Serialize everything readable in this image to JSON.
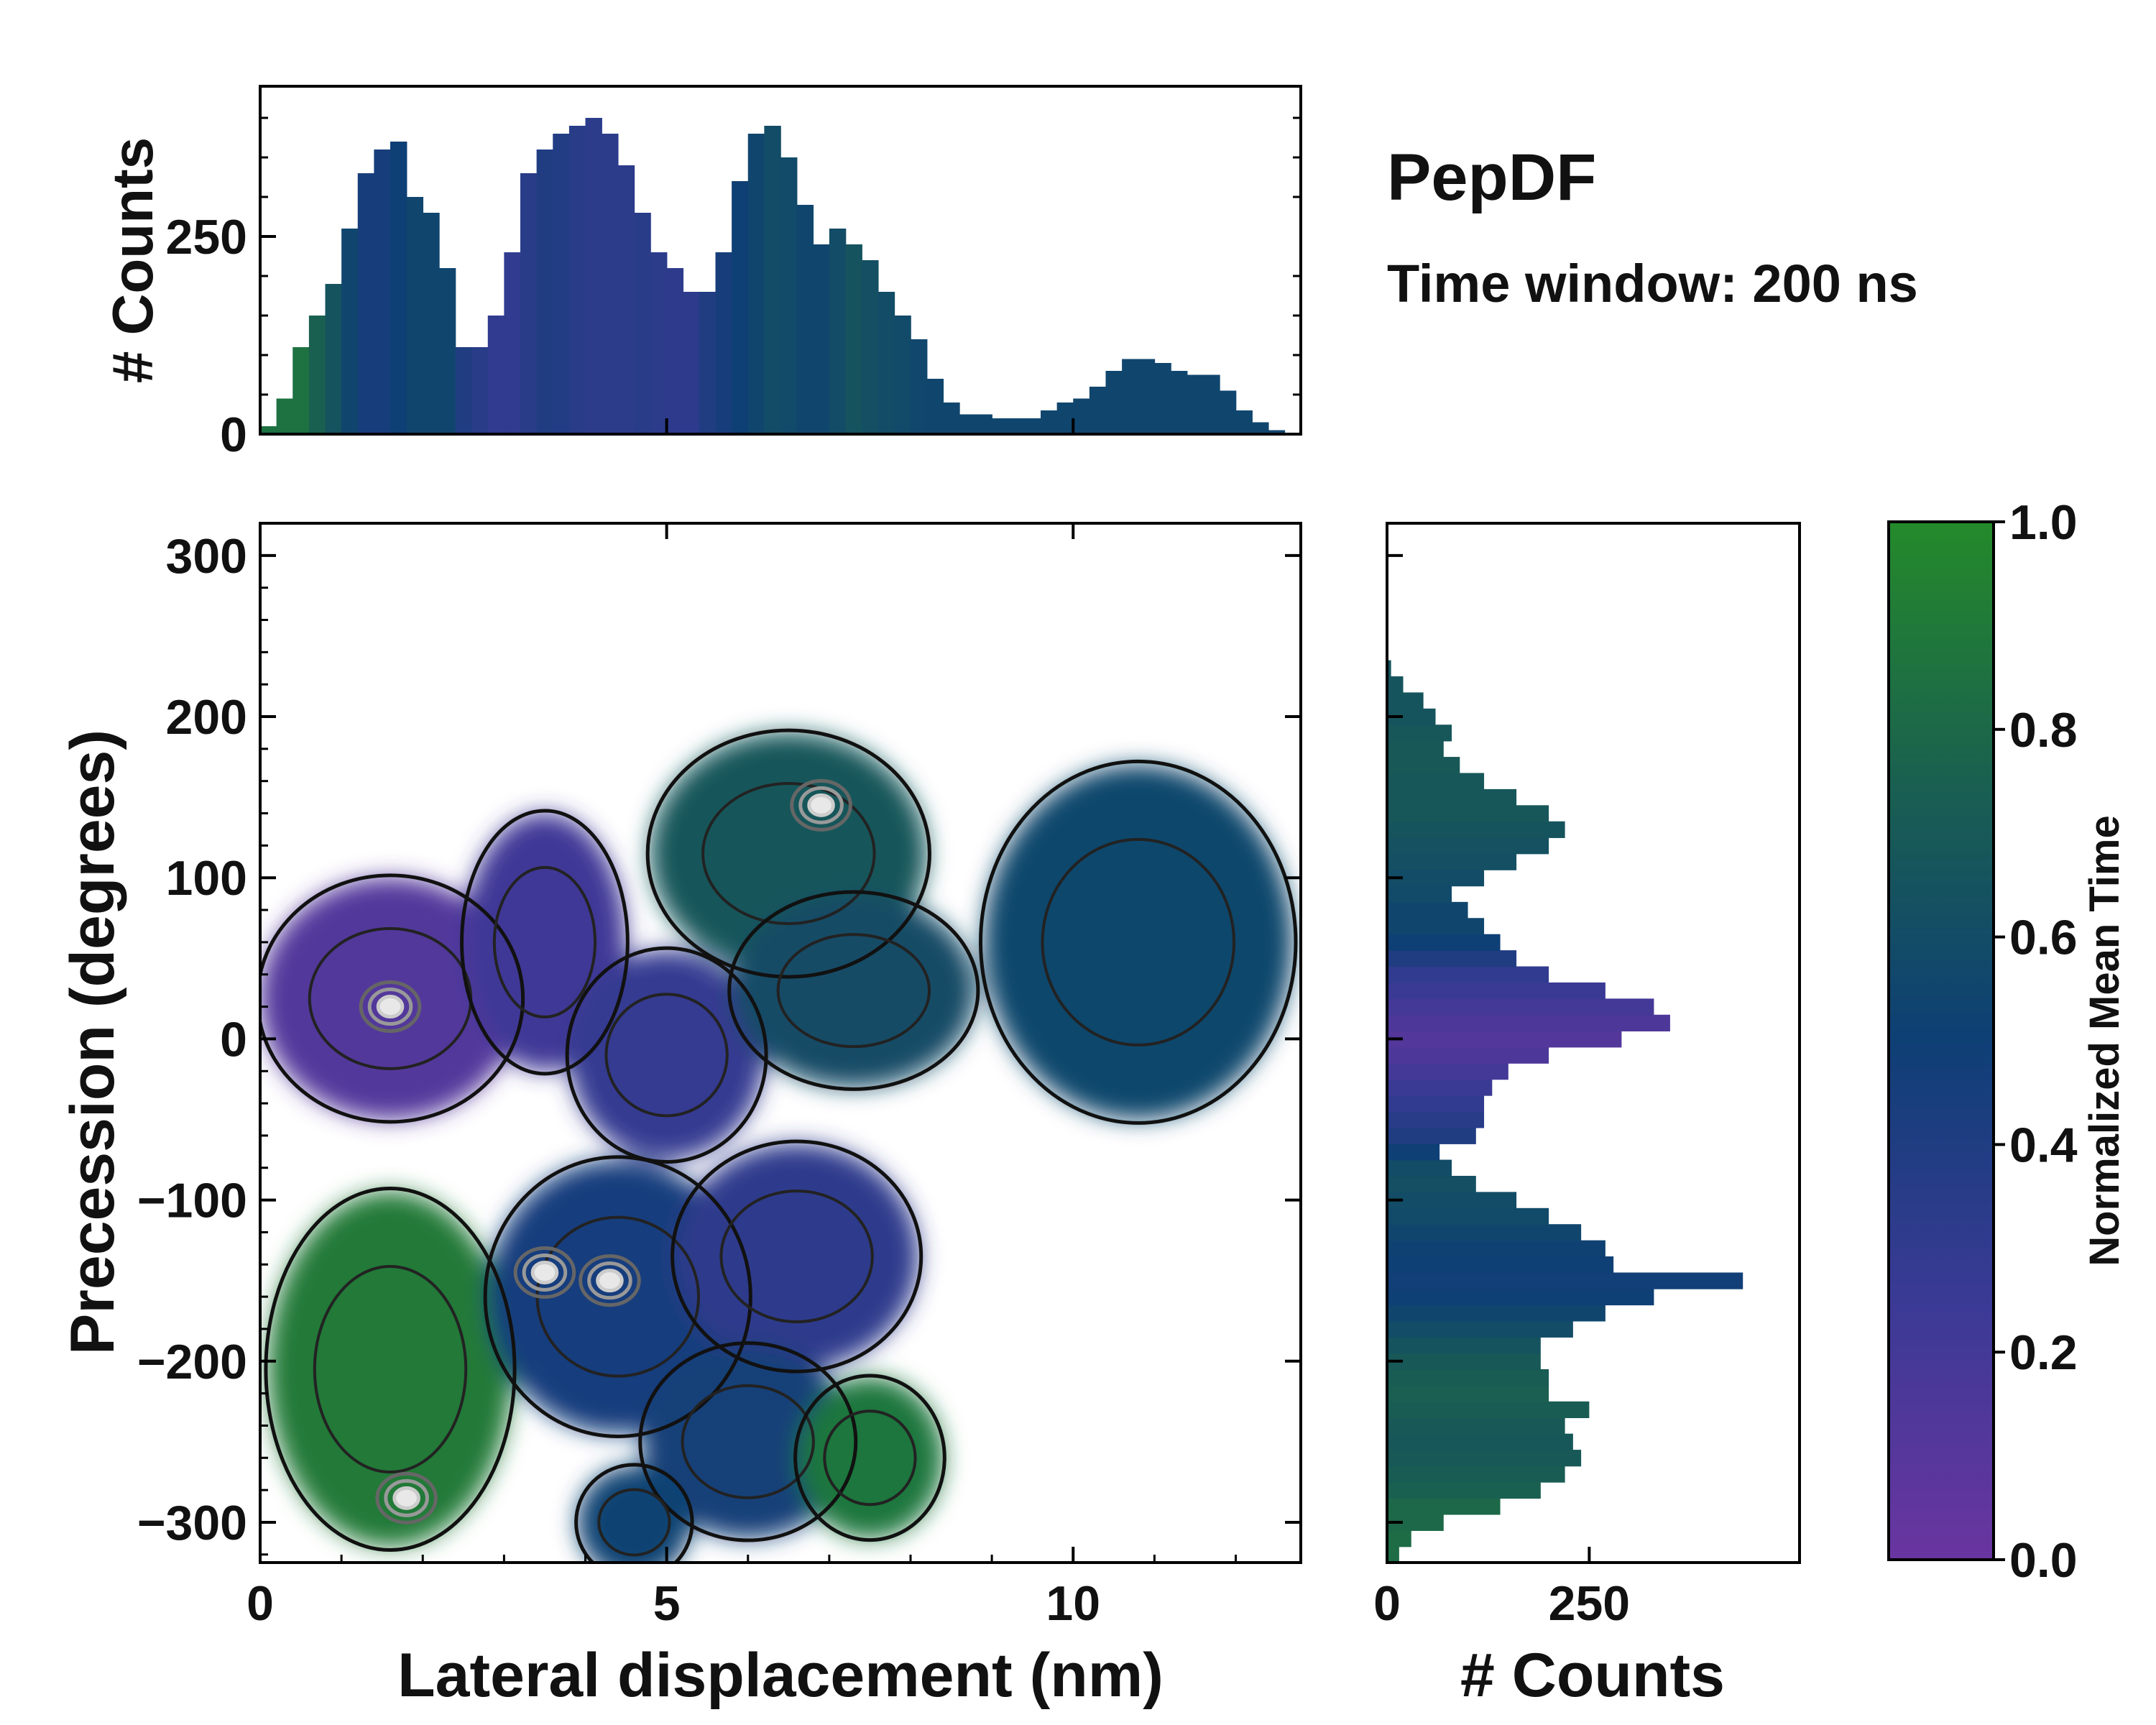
{
  "title": "PepDF",
  "subtitle": "Time window: 200 ns",
  "chart_data": [
    {
      "type": "heatmap",
      "name": "main-2d-histogram",
      "xlabel": "Lateral displacement (nm)",
      "ylabel": "Precession (degrees)",
      "xlim": [
        0,
        12.8
      ],
      "ylim": [
        -325,
        320
      ],
      "xticks": [
        0,
        5,
        10
      ],
      "yticks": [
        -300,
        -200,
        -100,
        0,
        100,
        200,
        300
      ],
      "colorbar": {
        "label": "Normalized Mean Time",
        "range": [
          0.0,
          1.0
        ],
        "ticks": [
          0.0,
          0.2,
          0.4,
          0.6,
          0.8,
          1.0
        ],
        "colors": [
          "#6a35a0",
          "#3a3a95",
          "#0e3f75",
          "#1a6050",
          "#248a2a"
        ]
      },
      "blobs": [
        {
          "cx": 1.6,
          "cy": 25,
          "rx": 1.6,
          "ry": 75,
          "t": 0.12
        },
        {
          "cx": 3.5,
          "cy": 60,
          "rx": 1.0,
          "ry": 80,
          "t": 0.22
        },
        {
          "cx": 5.0,
          "cy": -10,
          "rx": 1.2,
          "ry": 65,
          "t": 0.28
        },
        {
          "cx": 6.5,
          "cy": 115,
          "rx": 1.7,
          "ry": 75,
          "t": 0.68
        },
        {
          "cx": 7.3,
          "cy": 30,
          "rx": 1.5,
          "ry": 60,
          "t": 0.6
        },
        {
          "cx": 10.8,
          "cy": 60,
          "rx": 1.9,
          "ry": 110,
          "t": 0.56
        },
        {
          "cx": 1.6,
          "cy": -205,
          "rx": 1.5,
          "ry": 110,
          "t": 0.9
        },
        {
          "cx": 4.4,
          "cy": -160,
          "rx": 1.6,
          "ry": 85,
          "t": 0.44
        },
        {
          "cx": 6.6,
          "cy": -135,
          "rx": 1.5,
          "ry": 70,
          "t": 0.32
        },
        {
          "cx": 6.0,
          "cy": -250,
          "rx": 1.3,
          "ry": 60,
          "t": 0.48
        },
        {
          "cx": 7.5,
          "cy": -260,
          "rx": 0.9,
          "ry": 50,
          "t": 0.88
        },
        {
          "cx": 4.6,
          "cy": -300,
          "rx": 0.7,
          "ry": 35,
          "t": 0.52
        }
      ],
      "hotspots": [
        {
          "x": 1.6,
          "y": 20
        },
        {
          "x": 3.5,
          "y": -145
        },
        {
          "x": 4.3,
          "y": -150
        },
        {
          "x": 6.9,
          "y": 145
        },
        {
          "x": 1.8,
          "y": -285
        }
      ]
    },
    {
      "type": "bar",
      "name": "top-marginal-histogram",
      "xlabel": "",
      "ylabel": "# Counts",
      "xlim": [
        0,
        12.8
      ],
      "ylim": [
        0,
        440
      ],
      "yticks": [
        0,
        250
      ],
      "bin_centers": [
        0.1,
        0.3,
        0.5,
        0.7,
        0.9,
        1.1,
        1.3,
        1.5,
        1.7,
        1.9,
        2.1,
        2.3,
        2.5,
        2.7,
        2.9,
        3.1,
        3.3,
        3.5,
        3.7,
        3.9,
        4.1,
        4.3,
        4.5,
        4.7,
        4.9,
        5.1,
        5.3,
        5.5,
        5.7,
        5.9,
        6.1,
        6.3,
        6.5,
        6.7,
        6.9,
        7.1,
        7.3,
        7.5,
        7.7,
        7.9,
        8.1,
        8.3,
        8.5,
        8.7,
        8.9,
        9.1,
        9.3,
        9.5,
        9.7,
        9.9,
        10.1,
        10.3,
        10.5,
        10.7,
        10.9,
        11.1,
        11.3,
        11.5,
        11.7,
        11.9,
        12.1,
        12.3,
        12.5,
        12.7
      ],
      "values": [
        10,
        45,
        110,
        150,
        190,
        260,
        330,
        360,
        370,
        300,
        280,
        210,
        110,
        110,
        150,
        230,
        330,
        360,
        380,
        390,
        400,
        380,
        340,
        280,
        230,
        210,
        180,
        180,
        230,
        320,
        380,
        390,
        350,
        290,
        240,
        260,
        240,
        220,
        180,
        150,
        120,
        70,
        40,
        25,
        25,
        20,
        20,
        20,
        30,
        40,
        45,
        60,
        80,
        95,
        95,
        90,
        80,
        75,
        75,
        55,
        30,
        15,
        5,
        0
      ],
      "bar_color_t": [
        0.85,
        0.85,
        0.85,
        0.75,
        0.65,
        0.55,
        0.45,
        0.45,
        0.5,
        0.55,
        0.55,
        0.55,
        0.4,
        0.35,
        0.3,
        0.3,
        0.35,
        0.4,
        0.38,
        0.35,
        0.33,
        0.33,
        0.33,
        0.35,
        0.33,
        0.32,
        0.32,
        0.4,
        0.45,
        0.5,
        0.55,
        0.6,
        0.58,
        0.55,
        0.55,
        0.6,
        0.65,
        0.62,
        0.6,
        0.58,
        0.56,
        0.55,
        0.55,
        0.55,
        0.55,
        0.55,
        0.55,
        0.55,
        0.55,
        0.55,
        0.55,
        0.55,
        0.55,
        0.55,
        0.55,
        0.55,
        0.55,
        0.55,
        0.55,
        0.55,
        0.55,
        0.55,
        0.55,
        0.55
      ]
    },
    {
      "type": "bar",
      "orientation": "horizontal",
      "name": "right-marginal-histogram",
      "xlabel": "# Counts",
      "ylabel": "",
      "xlim": [
        0,
        510
      ],
      "ylim": [
        -325,
        320
      ],
      "xticks": [
        0,
        250
      ],
      "bin_centers": [
        -320,
        -310,
        -300,
        -290,
        -280,
        -270,
        -260,
        -250,
        -240,
        -230,
        -220,
        -210,
        -200,
        -190,
        -180,
        -170,
        -160,
        -150,
        -140,
        -130,
        -120,
        -110,
        -100,
        -90,
        -80,
        -70,
        -60,
        -50,
        -40,
        -30,
        -20,
        -10,
        0,
        10,
        20,
        30,
        40,
        50,
        60,
        70,
        80,
        90,
        100,
        110,
        120,
        130,
        140,
        150,
        160,
        170,
        180,
        190,
        200,
        210,
        220,
        230
      ],
      "values": [
        15,
        30,
        70,
        140,
        190,
        220,
        240,
        230,
        220,
        250,
        200,
        200,
        190,
        190,
        230,
        270,
        330,
        440,
        280,
        270,
        240,
        200,
        160,
        110,
        80,
        65,
        110,
        120,
        120,
        130,
        150,
        200,
        290,
        350,
        330,
        270,
        200,
        160,
        140,
        120,
        100,
        80,
        120,
        160,
        200,
        220,
        200,
        160,
        120,
        90,
        70,
        80,
        60,
        45,
        20,
        5
      ],
      "bar_color_t": [
        0.82,
        0.82,
        0.8,
        0.8,
        0.75,
        0.72,
        0.7,
        0.68,
        0.7,
        0.72,
        0.74,
        0.72,
        0.7,
        0.65,
        0.6,
        0.55,
        0.5,
        0.48,
        0.5,
        0.52,
        0.55,
        0.58,
        0.6,
        0.62,
        0.6,
        0.5,
        0.4,
        0.35,
        0.3,
        0.25,
        0.2,
        0.15,
        0.12,
        0.15,
        0.2,
        0.25,
        0.3,
        0.4,
        0.5,
        0.55,
        0.55,
        0.58,
        0.6,
        0.62,
        0.64,
        0.66,
        0.68,
        0.68,
        0.68,
        0.7,
        0.7,
        0.68,
        0.66,
        0.66,
        0.66,
        0.66
      ]
    }
  ]
}
